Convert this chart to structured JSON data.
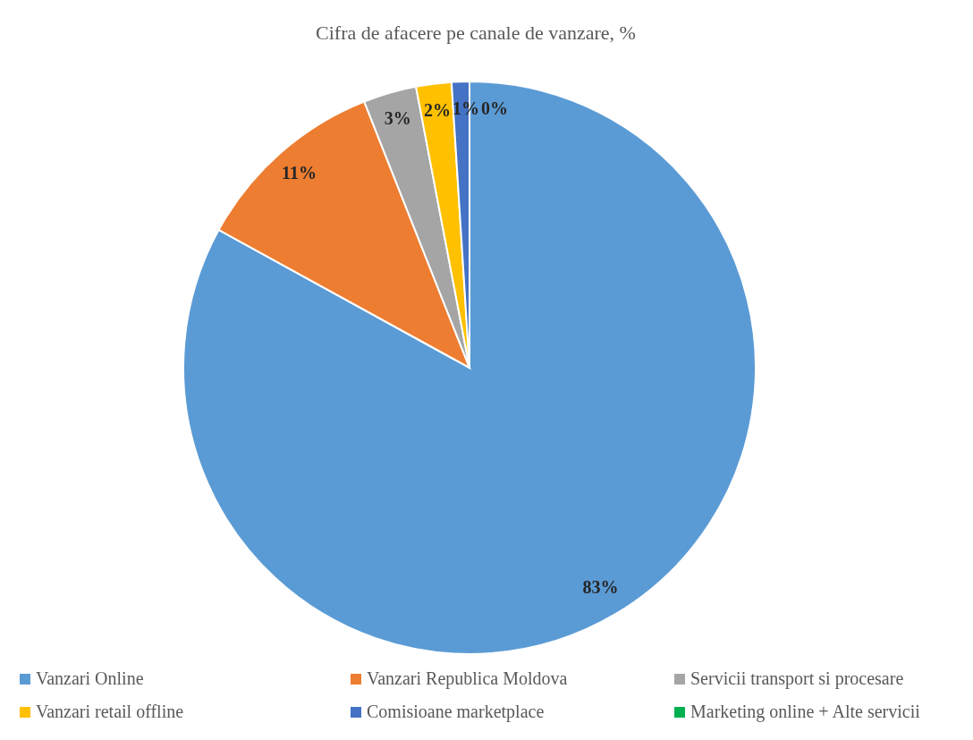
{
  "chart_data": {
    "type": "pie",
    "title": "Cifra de afacere pe canale de vanzare, %",
    "categories": [
      "Vanzari Online",
      "Vanzari Republica Moldova",
      "Servicii transport si procesare",
      "Vanzari retail offline",
      "Comisioane marketplace",
      "Marketing online + Alte servicii"
    ],
    "values": [
      83,
      11,
      3,
      2,
      1,
      0
    ],
    "colors": [
      "#5b9bd5",
      "#ed7d31",
      "#a5a5a5",
      "#ffc000",
      "#4472c4",
      "#00b050"
    ],
    "value_labels": [
      "83%",
      "11%",
      "3%",
      "2%",
      "1%",
      "0%"
    ],
    "legend": "bottom"
  }
}
